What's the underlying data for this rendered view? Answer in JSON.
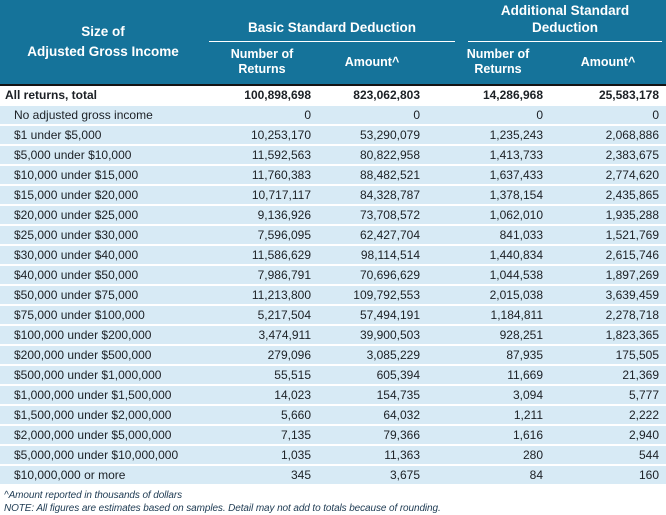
{
  "colors": {
    "header_bg": "#15739a",
    "row_bg": "#d7eaf5",
    "total_row_bg": "#ffffff",
    "separator": "#ffffff",
    "header_text": "#ffffff",
    "body_text": "#1c2025",
    "note_text": "#1d3a52",
    "header_bottom_border": "#141414"
  },
  "header": {
    "corner": "Size of\nAdjusted Gross Income",
    "groups": [
      {
        "label": "Basic Standard Deduction",
        "sub": [
          "Number of\nReturns",
          "Amount^"
        ]
      },
      {
        "label": "Additional Standard\nDeduction",
        "sub": [
          "Number of\nReturns",
          "Amount^"
        ]
      }
    ]
  },
  "chart_data": {
    "type": "table",
    "row_header": "Size of Adjusted Gross Income",
    "column_groups": [
      "Basic Standard Deduction",
      "Additional Standard Deduction"
    ],
    "columns": [
      "Number of Returns",
      "Amount^",
      "Number of Returns",
      "Amount^"
    ],
    "rows": [
      {
        "label": "All returns, total",
        "values": [
          "100,898,698",
          "823,062,803",
          "14,286,968",
          "25,583,178"
        ]
      },
      {
        "label": "No adjusted gross income",
        "values": [
          "0",
          "0",
          "0",
          "0"
        ]
      },
      {
        "label": "$1 under $5,000",
        "values": [
          "10,253,170",
          "53,290,079",
          "1,235,243",
          "2,068,886"
        ]
      },
      {
        "label": "$5,000 under $10,000",
        "values": [
          "11,592,563",
          "80,822,958",
          "1,413,733",
          "2,383,675"
        ]
      },
      {
        "label": "$10,000 under $15,000",
        "values": [
          "11,760,383",
          "88,482,521",
          "1,637,433",
          "2,774,620"
        ]
      },
      {
        "label": "$15,000 under $20,000",
        "values": [
          "10,717,117",
          "84,328,787",
          "1,378,154",
          "2,435,865"
        ]
      },
      {
        "label": "$20,000 under $25,000",
        "values": [
          "9,136,926",
          "73,708,572",
          "1,062,010",
          "1,935,288"
        ]
      },
      {
        "label": "$25,000 under $30,000",
        "values": [
          "7,596,095",
          "62,427,704",
          "841,033",
          "1,521,769"
        ]
      },
      {
        "label": "$30,000 under $40,000",
        "values": [
          "11,586,629",
          "98,114,514",
          "1,440,834",
          "2,615,746"
        ]
      },
      {
        "label": "$40,000 under $50,000",
        "values": [
          "7,986,791",
          "70,696,629",
          "1,044,538",
          "1,897,269"
        ]
      },
      {
        "label": "$50,000 under $75,000",
        "values": [
          "11,213,800",
          "109,792,553",
          "2,015,038",
          "3,639,459"
        ]
      },
      {
        "label": "$75,000 under $100,000",
        "values": [
          "5,217,504",
          "57,494,191",
          "1,184,811",
          "2,278,718"
        ]
      },
      {
        "label": "$100,000 under $200,000",
        "values": [
          "3,474,911",
          "39,900,503",
          "928,251",
          "1,823,365"
        ]
      },
      {
        "label": "$200,000 under $500,000",
        "values": [
          "279,096",
          "3,085,229",
          "87,935",
          "175,505"
        ]
      },
      {
        "label": "$500,000 under $1,000,000",
        "values": [
          "55,515",
          "605,394",
          "11,669",
          "21,369"
        ]
      },
      {
        "label": "$1,000,000 under $1,500,000",
        "values": [
          "14,023",
          "154,735",
          "3,094",
          "5,777"
        ]
      },
      {
        "label": "$1,500,000 under $2,000,000",
        "values": [
          "5,660",
          "64,032",
          "1,211",
          "2,222"
        ]
      },
      {
        "label": "$2,000,000 under $5,000,000",
        "values": [
          "7,135",
          "79,366",
          "1,616",
          "2,940"
        ]
      },
      {
        "label": "$5,000,000 under $10,000,000",
        "values": [
          "1,035",
          "11,363",
          "280",
          "544"
        ]
      },
      {
        "label": "$10,000,000 or more",
        "values": [
          "345",
          "3,675",
          "84",
          "160"
        ]
      }
    ],
    "notes": [
      "^Amount reported in thousands of dollars",
      "NOTE:  All figures are estimates based on samples. Detail may not add to totals because of rounding."
    ]
  }
}
